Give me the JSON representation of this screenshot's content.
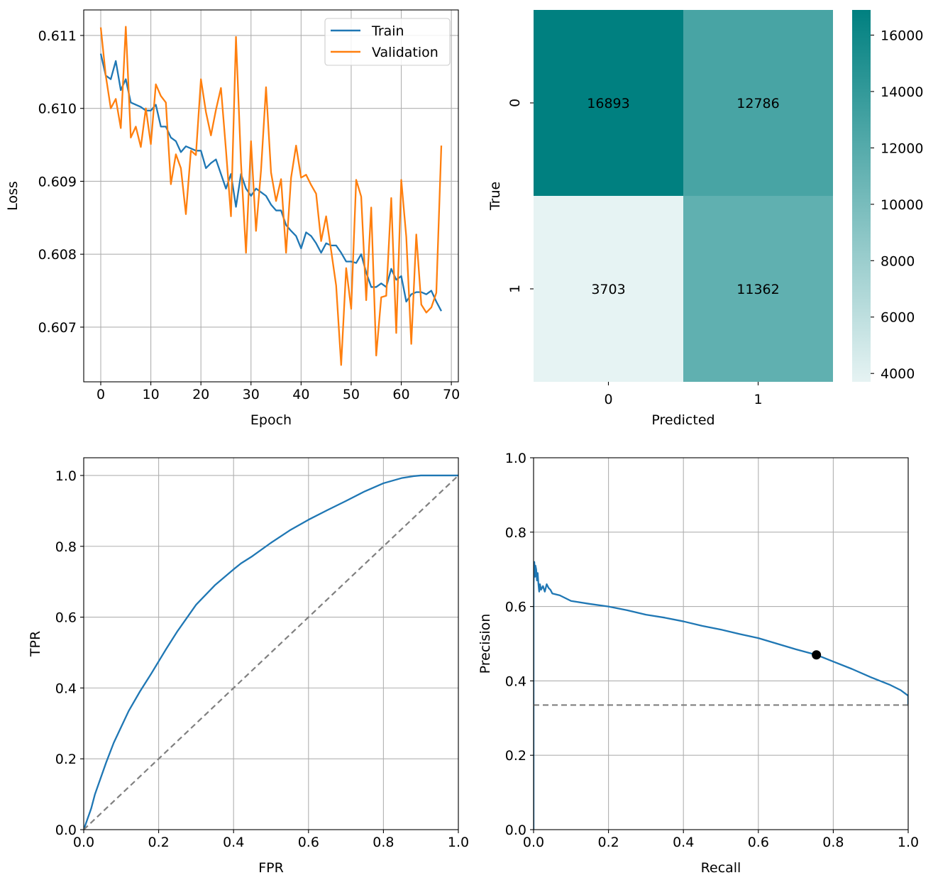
{
  "chart_data": [
    {
      "type": "line",
      "xlabel": "Epoch",
      "ylabel": "Loss",
      "xlim": [
        -3.4,
        71.4
      ],
      "ylim": [
        0.60625,
        0.61135
      ],
      "xticks": [
        0,
        10,
        20,
        30,
        40,
        50,
        60,
        70
      ],
      "yticks": [
        0.607,
        0.608,
        0.609,
        0.61,
        0.611
      ],
      "ytick_labels": [
        "0.607",
        "0.608",
        "0.609",
        "0.610",
        "0.611"
      ],
      "grid": true,
      "legend": "top-right",
      "colors": {
        "Train": "#1f77b4",
        "Validation": "#ff7f0e"
      },
      "series": [
        {
          "name": "Train",
          "x": [
            0,
            1,
            2,
            3,
            4,
            5,
            6,
            7,
            8,
            9,
            10,
            11,
            12,
            13,
            14,
            15,
            16,
            17,
            18,
            19,
            20,
            21,
            22,
            23,
            24,
            25,
            26,
            27,
            28,
            29,
            30,
            31,
            32,
            33,
            34,
            35,
            36,
            37,
            38,
            39,
            40,
            41,
            42,
            43,
            44,
            45,
            46,
            47,
            48,
            49,
            50,
            51,
            52,
            53,
            54,
            55,
            56,
            57,
            58,
            59,
            60,
            61,
            62,
            63,
            64,
            65,
            66,
            67,
            68
          ],
          "y": [
            0.61075,
            0.61045,
            0.6104,
            0.61065,
            0.61025,
            0.6104,
            0.61008,
            0.61005,
            0.61002,
            0.60997,
            0.60997,
            0.61005,
            0.60975,
            0.60975,
            0.6096,
            0.60955,
            0.6094,
            0.60948,
            0.60945,
            0.60942,
            0.60942,
            0.60918,
            0.60925,
            0.6093,
            0.6091,
            0.6089,
            0.6091,
            0.60865,
            0.6091,
            0.6089,
            0.6088,
            0.6089,
            0.60885,
            0.6088,
            0.60868,
            0.6086,
            0.6086,
            0.6084,
            0.60832,
            0.60825,
            0.60808,
            0.6083,
            0.60825,
            0.60815,
            0.60802,
            0.60815,
            0.60812,
            0.60812,
            0.60802,
            0.6079,
            0.6079,
            0.60788,
            0.608,
            0.60775,
            0.60755,
            0.60755,
            0.6076,
            0.60755,
            0.6078,
            0.60765,
            0.6077,
            0.60735,
            0.60745,
            0.60748,
            0.60748,
            0.60745,
            0.6075,
            0.60735,
            0.60722
          ]
        },
        {
          "name": "Validation",
          "x": [
            0,
            1,
            2,
            3,
            4,
            5,
            6,
            7,
            8,
            9,
            10,
            11,
            12,
            13,
            14,
            15,
            16,
            17,
            18,
            19,
            20,
            21,
            22,
            23,
            24,
            25,
            26,
            27,
            28,
            29,
            30,
            31,
            32,
            33,
            34,
            35,
            36,
            37,
            38,
            39,
            40,
            41,
            42,
            43,
            44,
            45,
            46,
            47,
            48,
            49,
            50,
            51,
            52,
            53,
            54,
            55,
            56,
            57,
            58,
            59,
            60,
            61,
            62,
            63,
            64,
            65,
            66,
            67,
            68
          ],
          "y": [
            0.61111,
            0.61045,
            0.61,
            0.61013,
            0.60973,
            0.61112,
            0.6096,
            0.60975,
            0.60947,
            0.61,
            0.60951,
            0.61033,
            0.61017,
            0.61008,
            0.60896,
            0.60937,
            0.60918,
            0.60855,
            0.60942,
            0.60936,
            0.6104,
            0.60995,
            0.60963,
            0.60998,
            0.61028,
            0.60943,
            0.60852,
            0.61098,
            0.60925,
            0.60802,
            0.60955,
            0.60832,
            0.60915,
            0.61029,
            0.60912,
            0.60873,
            0.60903,
            0.60802,
            0.60905,
            0.60949,
            0.60905,
            0.60909,
            0.60895,
            0.60883,
            0.60818,
            0.60852,
            0.60805,
            0.60757,
            0.60648,
            0.60781,
            0.60725,
            0.60902,
            0.60879,
            0.60737,
            0.60864,
            0.60661,
            0.60741,
            0.60743,
            0.60877,
            0.60692,
            0.60902,
            0.60824,
            0.60677,
            0.60827,
            0.60731,
            0.6072,
            0.60727,
            0.60747,
            0.60949
          ]
        }
      ]
    },
    {
      "type": "heatmap",
      "xlabel": "Predicted",
      "ylabel": "True",
      "x_categories": [
        "0",
        "1"
      ],
      "y_categories": [
        "0",
        "1"
      ],
      "values": [
        [
          16893,
          12786
        ],
        [
          3703,
          11362
        ]
      ],
      "colorbar": {
        "min": 3703,
        "max": 16893,
        "ticks": [
          4000,
          6000,
          8000,
          10000,
          12000,
          14000,
          16000
        ],
        "color_low": "#e6f3f3",
        "color_high": "#008080"
      },
      "label_colors": {
        "light": "#ffffff",
        "dark": "#262626"
      }
    },
    {
      "type": "line",
      "xlabel": "FPR",
      "ylabel": "TPR",
      "xlim": [
        0,
        1
      ],
      "ylim": [
        0,
        1.05
      ],
      "xticks": [
        0.0,
        0.2,
        0.4,
        0.6,
        0.8,
        1.0
      ],
      "yticks": [
        0.0,
        0.2,
        0.4,
        0.6,
        0.8,
        1.0
      ],
      "tick_labels": [
        "0.0",
        "0.2",
        "0.4",
        "0.6",
        "0.8",
        "1.0"
      ],
      "grid": true,
      "series": [
        {
          "name": "",
          "color": "#1f77b4",
          "x": [
            0,
            0.01,
            0.02,
            0.03,
            0.04,
            0.06,
            0.08,
            0.1,
            0.12,
            0.15,
            0.18,
            0.2,
            0.22,
            0.25,
            0.28,
            0.3,
            0.35,
            0.4,
            0.42,
            0.45,
            0.5,
            0.55,
            0.6,
            0.65,
            0.7,
            0.75,
            0.8,
            0.85,
            0.88,
            0.9,
            0.95,
            1.0
          ],
          "y": [
            0,
            0.03,
            0.06,
            0.1,
            0.13,
            0.19,
            0.245,
            0.29,
            0.335,
            0.39,
            0.44,
            0.475,
            0.51,
            0.56,
            0.605,
            0.635,
            0.69,
            0.735,
            0.752,
            0.772,
            0.81,
            0.845,
            0.875,
            0.902,
            0.928,
            0.955,
            0.978,
            0.993,
            0.998,
            1.0,
            1.0,
            1.0
          ]
        },
        {
          "name": "",
          "color": "#808080",
          "dashed": true,
          "x": [
            0,
            1
          ],
          "y": [
            0,
            1
          ]
        }
      ]
    },
    {
      "type": "line",
      "xlabel": "Recall",
      "ylabel": "Precision",
      "xlim": [
        0,
        1
      ],
      "ylim": [
        0,
        1
      ],
      "xticks": [
        0.0,
        0.2,
        0.4,
        0.6,
        0.8,
        1.0
      ],
      "yticks": [
        0.0,
        0.2,
        0.4,
        0.6,
        0.8,
        1.0
      ],
      "tick_labels": [
        "0.0",
        "0.2",
        "0.4",
        "0.6",
        "0.8",
        "1.0"
      ],
      "grid": true,
      "series": [
        {
          "name": "",
          "color": "#1f77b4",
          "x": [
            0,
            0,
            0,
            0.002,
            0.004,
            0.005,
            0.007,
            0.009,
            0.011,
            0.013,
            0.015,
            0.017,
            0.02,
            0.025,
            0.03,
            0.035,
            0.04,
            0.045,
            0.05,
            0.07,
            0.1,
            0.15,
            0.2,
            0.25,
            0.3,
            0.35,
            0.4,
            0.45,
            0.5,
            0.55,
            0.6,
            0.65,
            0.7,
            0.755,
            0.8,
            0.85,
            0.9,
            0.95,
            0.98,
            1.0,
            1.0
          ],
          "y": [
            0,
            0.53,
            0.66,
            0.72,
            0.68,
            0.71,
            0.7,
            0.67,
            0.69,
            0.66,
            0.64,
            0.66,
            0.645,
            0.655,
            0.64,
            0.66,
            0.65,
            0.645,
            0.635,
            0.63,
            0.615,
            0.607,
            0.6,
            0.59,
            0.578,
            0.57,
            0.56,
            0.548,
            0.538,
            0.526,
            0.515,
            0.5,
            0.485,
            0.47,
            0.452,
            0.432,
            0.41,
            0.39,
            0.375,
            0.36,
            0.335
          ]
        },
        {
          "name": "",
          "color": "#808080",
          "dashed": true,
          "x": [
            0,
            1
          ],
          "y": [
            0.335,
            0.335
          ]
        }
      ],
      "marker": {
        "x": 0.755,
        "y": 0.47,
        "color": "#000000"
      }
    }
  ]
}
